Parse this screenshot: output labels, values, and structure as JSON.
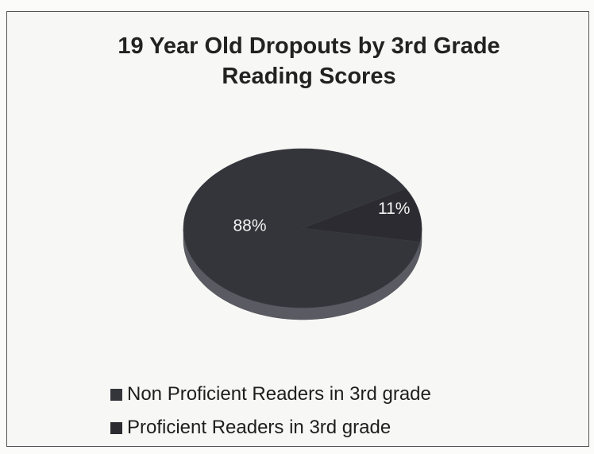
{
  "chart_data": {
    "type": "pie",
    "title": "19 Year Old Dropouts by 3rd Grade Reading Scores",
    "categories": [
      "Non Proficient Readers in 3rd grade",
      "Proficient Readers in 3rd grade"
    ],
    "values": [
      88,
      11
    ],
    "value_labels": [
      "88%",
      "11%"
    ],
    "colors": [
      "#34343b",
      "#2b2b31"
    ],
    "legend": "bottom"
  }
}
